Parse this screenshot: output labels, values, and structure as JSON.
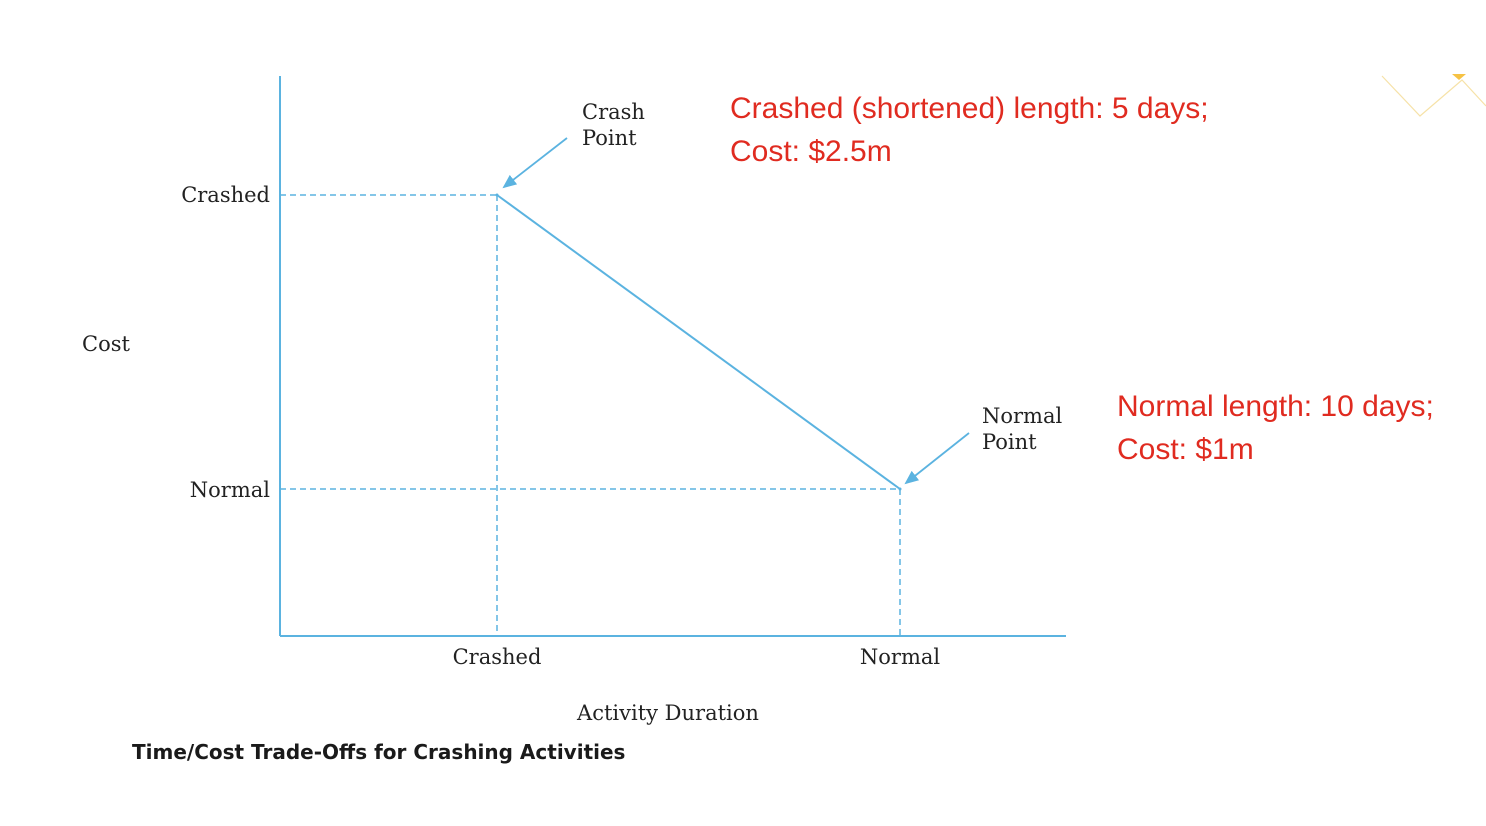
{
  "chart_data": {
    "type": "line",
    "title": "Time/Cost Trade-Offs for Crashing Activities",
    "xlabel": "Activity Duration",
    "ylabel": "Cost",
    "x_ticks": [
      "Crashed",
      "Normal"
    ],
    "y_ticks": [
      "Crashed",
      "Normal"
    ],
    "points": [
      {
        "x": "Crashed",
        "y": "Crashed",
        "label": "Crash\nPoint"
      },
      {
        "x": "Normal",
        "y": "Normal",
        "label": "Normal\nPoint"
      }
    ],
    "annotations": [
      {
        "id": "crash",
        "lines": [
          "Crashed (shortened) length: 5 days;",
          "Cost: $2.5m"
        ]
      },
      {
        "id": "normal",
        "lines": [
          "Normal length: 10 days;",
          "Cost: $1m"
        ]
      }
    ],
    "colors": {
      "line": "#5bb3e0",
      "annotation": "#e02b20",
      "text": "#222222",
      "decor": "#f6c244"
    }
  }
}
